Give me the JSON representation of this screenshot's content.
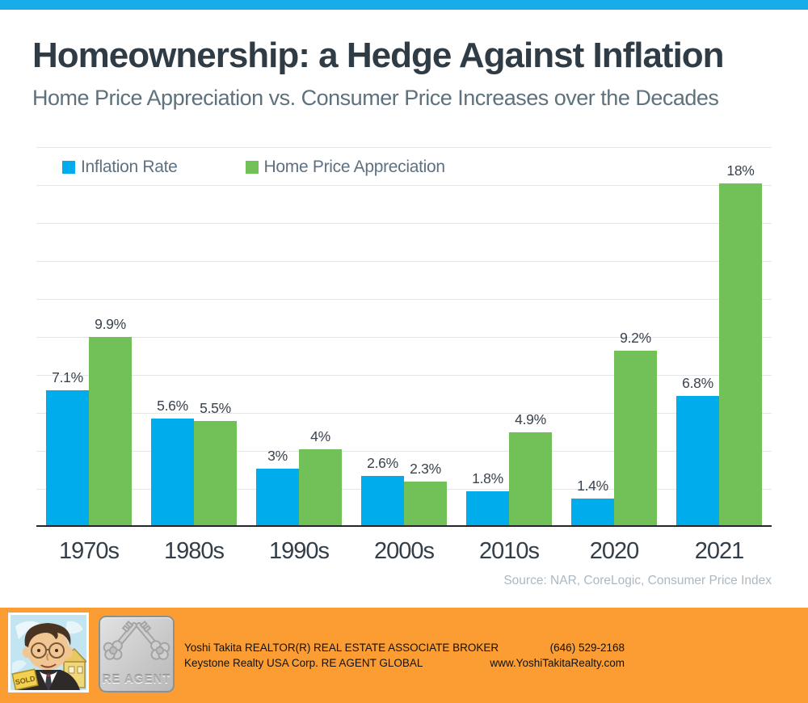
{
  "top_bar": {
    "color": "#18ACE9"
  },
  "header": {
    "title": "Homeownership: a Hedge Against Inflation",
    "subtitle": "Home Price Appreciation vs. Consumer Price Increases over the Decades"
  },
  "chart_data": {
    "type": "bar",
    "categories": [
      "1970s",
      "1980s",
      "1990s",
      "2000s",
      "2010s",
      "2020",
      "2021"
    ],
    "series": [
      {
        "name": "Inflation Rate",
        "color": "#00ACEC",
        "values": [
          7.1,
          5.6,
          3,
          2.6,
          1.8,
          1.4,
          6.8
        ],
        "labels": [
          "7.1%",
          "5.6%",
          "3%",
          "2.6%",
          "1.8%",
          "1.4%",
          "6.8%"
        ]
      },
      {
        "name": "Home Price Appreciation",
        "color": "#72C158",
        "values": [
          9.9,
          5.5,
          4,
          2.3,
          4.9,
          9.2,
          18
        ],
        "labels": [
          "9.9%",
          "5.5%",
          "4%",
          "2.3%",
          "4.9%",
          "9.2%",
          "18%"
        ]
      }
    ],
    "title": "",
    "xlabel": "",
    "ylabel": "",
    "ylim": [
      0,
      20
    ],
    "gridline_step": 2,
    "grid": true,
    "legend_position": "top-left"
  },
  "source_note": "Source: NAR, CoreLogic, Consumer Price Index",
  "footer": {
    "background": "#FB9D33",
    "agent_line1": "Yoshi Takita REALTOR(R) REAL ESTATE ASSOCIATE BROKER",
    "agent_line2": "Keystone Realty USA Corp.  RE AGENT GLOBAL",
    "phone": "(646) 529-2168",
    "website": "www.YoshiTakitaRealty.com",
    "logo_text": "RE AGENT",
    "sold_sign": "SOLD"
  }
}
